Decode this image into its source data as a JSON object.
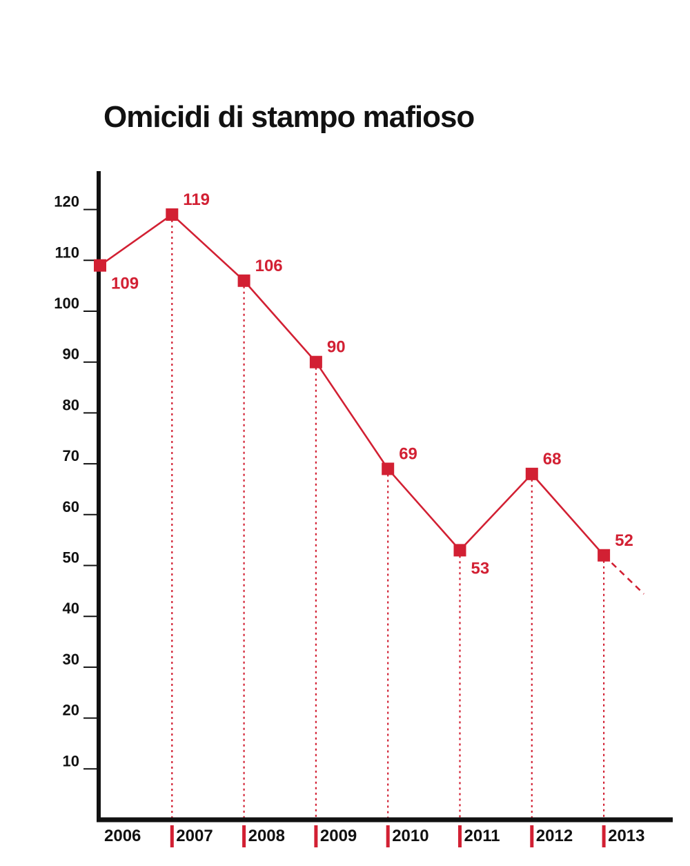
{
  "chart_data": {
    "type": "line",
    "title": "Omicidi di stampo mafioso",
    "xlabel": "",
    "ylabel": "",
    "categories": [
      "2006",
      "2007",
      "2008",
      "2009",
      "2010",
      "2011",
      "2012",
      "2013"
    ],
    "series": [
      {
        "values": [
          109,
          119,
          106,
          90,
          69,
          53,
          68,
          52
        ]
      }
    ],
    "data_labels": [
      "109",
      "119",
      "106",
      "90",
      "69",
      "53",
      "68",
      "52"
    ],
    "yticks": [
      10,
      20,
      30,
      40,
      50,
      60,
      70,
      80,
      90,
      100,
      110,
      120
    ],
    "ylim": [
      0,
      120
    ],
    "grid": false,
    "trend_extension": "dashed downward continuation after 2013",
    "colors": {
      "series": "#d22033",
      "axis": "#111111",
      "text": "#111111"
    }
  }
}
